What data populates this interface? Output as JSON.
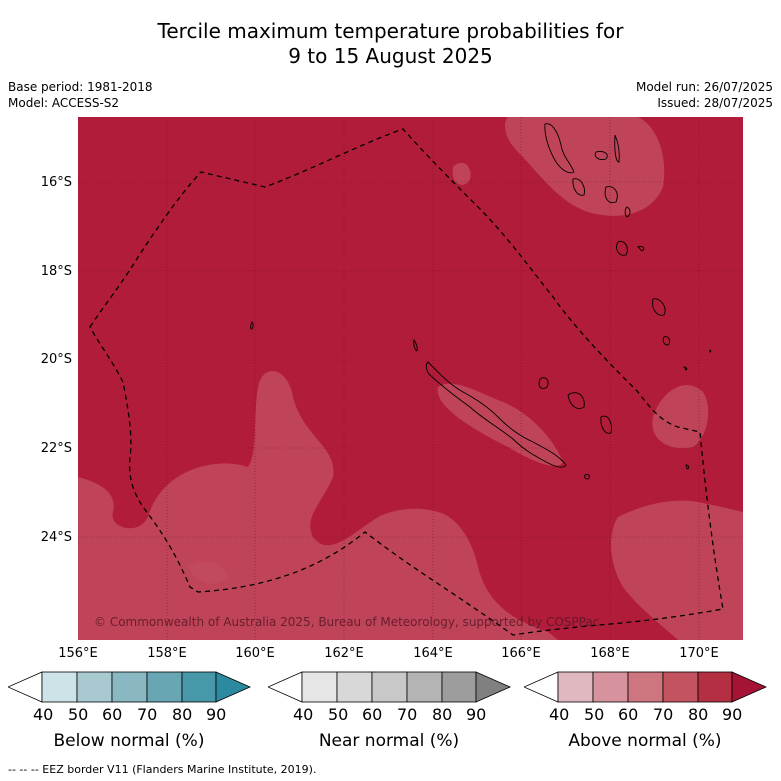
{
  "title": {
    "line1": "Tercile maximum temperature probabilities for",
    "line2": "9 to 15 August 2025"
  },
  "meta_left": {
    "base_period": "Base period: 1981-2018",
    "model": "Model: ACCESS-S2"
  },
  "meta_right": {
    "model_run": "Model run: 26/07/2025",
    "issued": "Issued: 28/07/2025"
  },
  "map": {
    "lat_ticks": [
      "16°S",
      "18°S",
      "20°S",
      "22°S",
      "24°S"
    ],
    "lon_ticks": [
      "156°E",
      "158°E",
      "160°E",
      "162°E",
      "164°E",
      "166°E",
      "168°E",
      "170°E"
    ],
    "copyright": "© Commonwealth of Australia 2025, Bureau of Meteorology, supported by COSPPac",
    "background_category": "Above normal 80-90%",
    "colors": {
      "above_80": "#b11c3a",
      "above_70": "#c24b5f",
      "land_outline": "#000000",
      "eez": "#000000"
    }
  },
  "colorbars": [
    {
      "label": "Below normal (%)",
      "ticks": [
        "40",
        "50",
        "60",
        "70",
        "80",
        "90"
      ],
      "colors": [
        "#ffffff",
        "#cde3e8",
        "#a8c9d0",
        "#89b7c2",
        "#68a6b3",
        "#4798a9",
        "#2b8aa0"
      ]
    },
    {
      "label": "Near normal (%)",
      "ticks": [
        "40",
        "50",
        "60",
        "70",
        "80",
        "90"
      ],
      "colors": [
        "#ffffff",
        "#e6e6e6",
        "#d8d8d8",
        "#c8c8c8",
        "#b4b4b4",
        "#9d9d9d",
        "#808080"
      ]
    },
    {
      "label": "Above normal (%)",
      "ticks": [
        "40",
        "50",
        "60",
        "70",
        "80",
        "90"
      ],
      "colors": [
        "#ffffff",
        "#e0b8c0",
        "#d7939d",
        "#cd767f",
        "#c2535f",
        "#b52f42",
        "#a51434"
      ]
    }
  ],
  "footnote": "--  --  -- EEZ border V11 (Flanders Marine Institute, 2019)."
}
